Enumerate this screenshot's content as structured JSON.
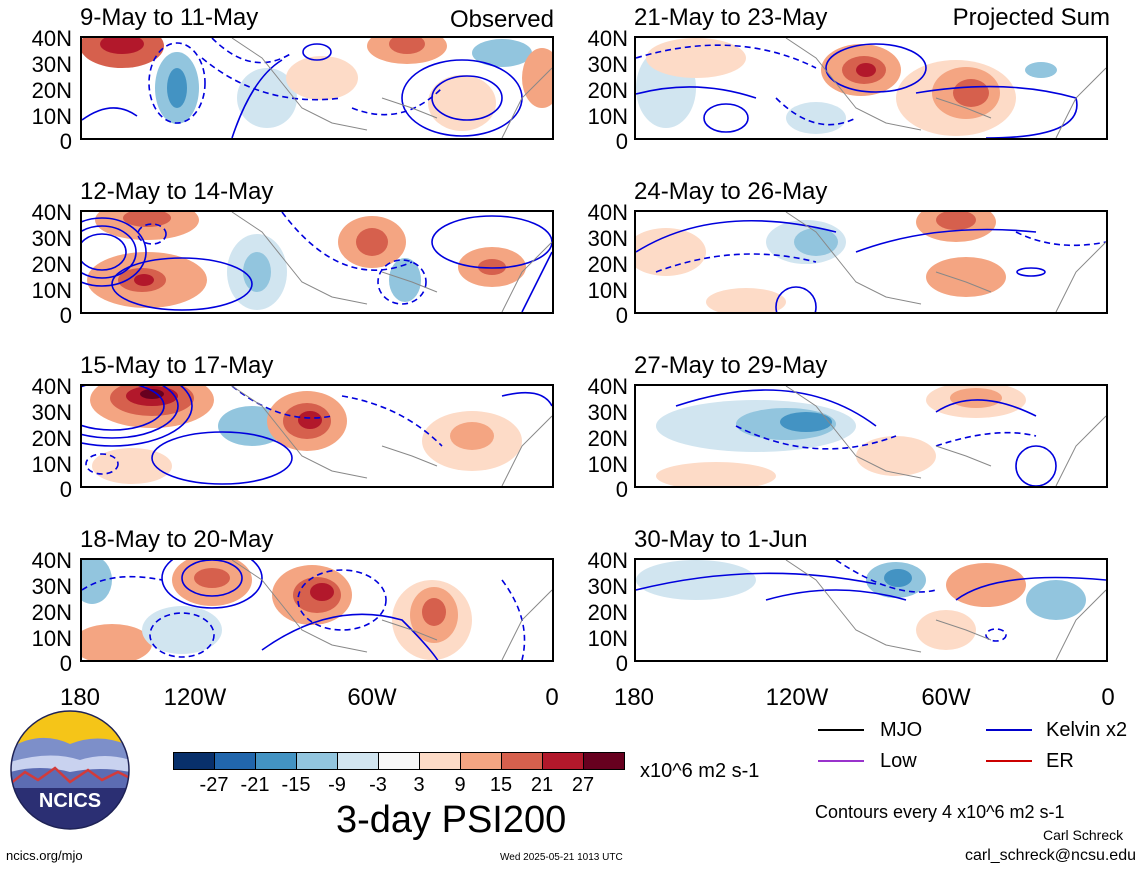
{
  "latitude_labels": [
    "40N",
    "30N",
    "20N",
    "10N",
    "0"
  ],
  "longitude_labels": [
    "180",
    "120W",
    "60W",
    "0"
  ],
  "left_column": {
    "tag": "Observed",
    "panels": [
      {
        "title": "9-May to 11-May"
      },
      {
        "title": "12-May to 14-May"
      },
      {
        "title": "15-May to 17-May"
      },
      {
        "title": "18-May to 20-May"
      }
    ]
  },
  "right_column": {
    "tag": "Projected Sum",
    "panels": [
      {
        "title": "21-May to 23-May"
      },
      {
        "title": "24-May to 26-May"
      },
      {
        "title": "27-May to 29-May"
      },
      {
        "title": "30-May to 1-Jun"
      }
    ]
  },
  "colorbar": {
    "labels": [
      "-27",
      "-21",
      "-15",
      "-9",
      "-3",
      "3",
      "9",
      "15",
      "21",
      "27"
    ],
    "colors": [
      "#08306b",
      "#2166ac",
      "#4393c3",
      "#92c5de",
      "#d1e5f0",
      "#f7f7f7",
      "#fddbc7",
      "#f4a582",
      "#d6604d",
      "#b2182b",
      "#67001f"
    ],
    "units": "x10^6 m2 s-1",
    "title": "3-day PSI200"
  },
  "legend": [
    {
      "label": "MJO",
      "color": "#000000"
    },
    {
      "label": "Kelvin x2",
      "color": "#0000cc"
    },
    {
      "label": "Low",
      "color": "#9933cc"
    },
    {
      "label": "ER",
      "color": "#cc0000"
    }
  ],
  "contour_note": "Contours every 4 x10^6 m2 s-1",
  "logo_text": "NCICS",
  "footer": {
    "url": "ncics.org/mjo",
    "timestamp": "Wed 2025-05-21 1013 UTC",
    "author": "Carl Schreck",
    "email": "carl_schreck@ncsu.edu"
  }
}
